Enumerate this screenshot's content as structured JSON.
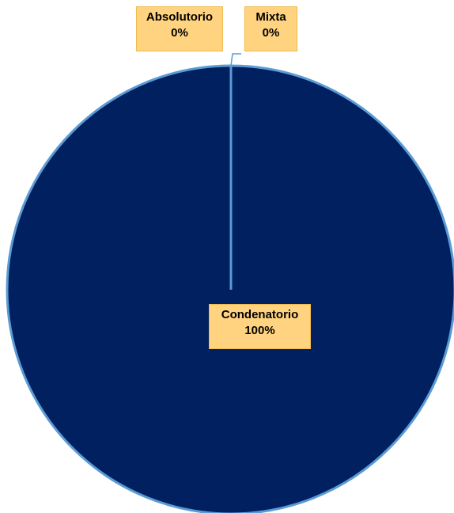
{
  "chart_data": {
    "type": "pie",
    "slices": [
      {
        "name": "Condenatorio",
        "value": 100,
        "percent_label": "100%",
        "color": "#002060"
      },
      {
        "name": "Absolutorio",
        "value": 0,
        "percent_label": "0%",
        "color": "#ffc000"
      },
      {
        "name": "Mixta",
        "value": 0,
        "percent_label": "0%",
        "color": "#a5a5a5"
      }
    ],
    "slice_border_color": "#5b9bd5",
    "label_background": "#ffd37f",
    "leader_line_color": "#5b9bd5",
    "legend": "none"
  }
}
